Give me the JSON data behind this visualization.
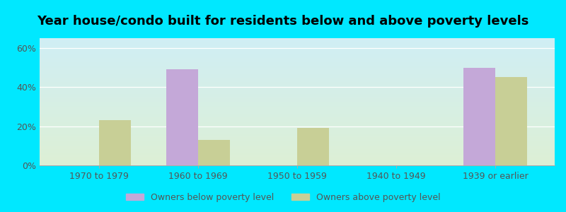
{
  "title": "Year house/condo built for residents below and above poverty levels",
  "categories": [
    "1970 to 1979",
    "1960 to 1969",
    "1950 to 1959",
    "1940 to 1949",
    "1939 or earlier"
  ],
  "below_poverty": [
    0,
    49,
    0,
    0,
    50
  ],
  "above_poverty": [
    23,
    13,
    19,
    0,
    45
  ],
  "below_color": "#c4a8d8",
  "above_color": "#c8cf96",
  "ytick_vals": [
    0,
    20,
    40,
    60
  ],
  "ytick_labels": [
    "0%",
    "20%",
    "40%",
    "60%"
  ],
  "ylim": [
    0,
    65
  ],
  "bar_width": 0.32,
  "bg_top_color": "#d0eef5",
  "bg_bottom_color": "#ddf0d5",
  "outer_bg": "#00e8ff",
  "legend_below": "Owners below poverty level",
  "legend_above": "Owners above poverty level",
  "title_fontsize": 13,
  "axis_fontsize": 9,
  "legend_fontsize": 9,
  "tick_color": "#555555",
  "grid_color": "#ffffff",
  "spine_color": "#aaaaaa"
}
